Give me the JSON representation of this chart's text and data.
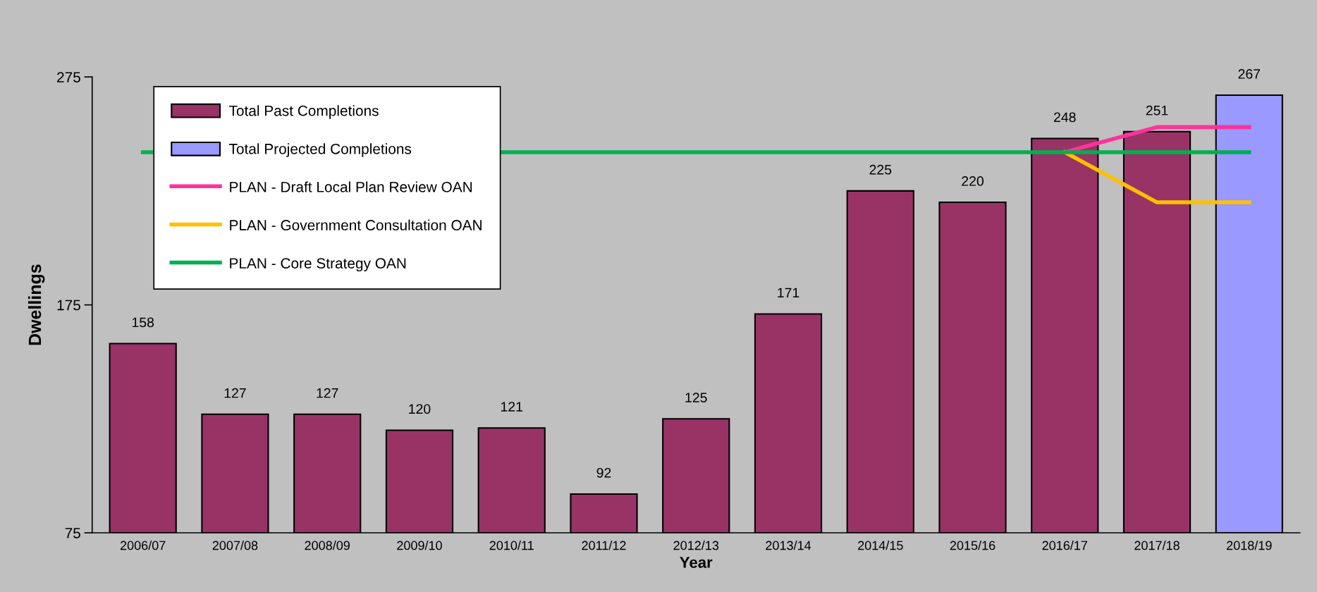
{
  "chart_data": {
    "type": "bar",
    "xlabel": "Year",
    "ylabel": "Dwellings",
    "categories": [
      "2006/07",
      "2007/08",
      "2008/09",
      "2009/10",
      "2010/11",
      "2011/12",
      "2012/13",
      "2013/14",
      "2014/15",
      "2015/16",
      "2016/17",
      "2017/18",
      "2018/19"
    ],
    "ylim": [
      75,
      275
    ],
    "yticks": [
      75,
      175,
      275
    ],
    "grid": false,
    "legend": "top left",
    "series": [
      {
        "name": "Total Past Completions",
        "color": "#993366",
        "values": [
          158,
          127,
          127,
          120,
          121,
          92,
          125,
          171,
          225,
          220,
          248,
          251,
          null
        ],
        "value_labels": [
          "158",
          "127",
          "127",
          "120",
          "121",
          "92",
          "125",
          "171",
          "225",
          "220",
          "248",
          "251",
          null
        ]
      },
      {
        "name": "Total Projected Completions",
        "color": "#9999ff",
        "values": [
          null,
          null,
          null,
          null,
          null,
          null,
          null,
          null,
          null,
          null,
          null,
          null,
          267
        ],
        "value_labels": [
          null,
          null,
          null,
          null,
          null,
          null,
          null,
          null,
          null,
          null,
          null,
          null,
          "267"
        ]
      },
      {
        "name": "PLAN - Draft Local Plan Review OAN",
        "type": "line",
        "color": "#ff3399",
        "values": [
          null,
          null,
          null,
          null,
          null,
          null,
          null,
          null,
          null,
          null,
          242,
          253,
          253
        ]
      },
      {
        "name": "PLAN - Government Consultation OAN",
        "type": "line",
        "color": "#ffc000",
        "values": [
          null,
          null,
          null,
          null,
          null,
          null,
          null,
          null,
          null,
          null,
          242,
          220,
          220
        ]
      },
      {
        "name": "PLAN - Core Strategy OAN",
        "type": "line",
        "color": "#00b050",
        "values": [
          242,
          null,
          null,
          null,
          242,
          242,
          242,
          242,
          242,
          242,
          242,
          242,
          242
        ]
      }
    ]
  }
}
